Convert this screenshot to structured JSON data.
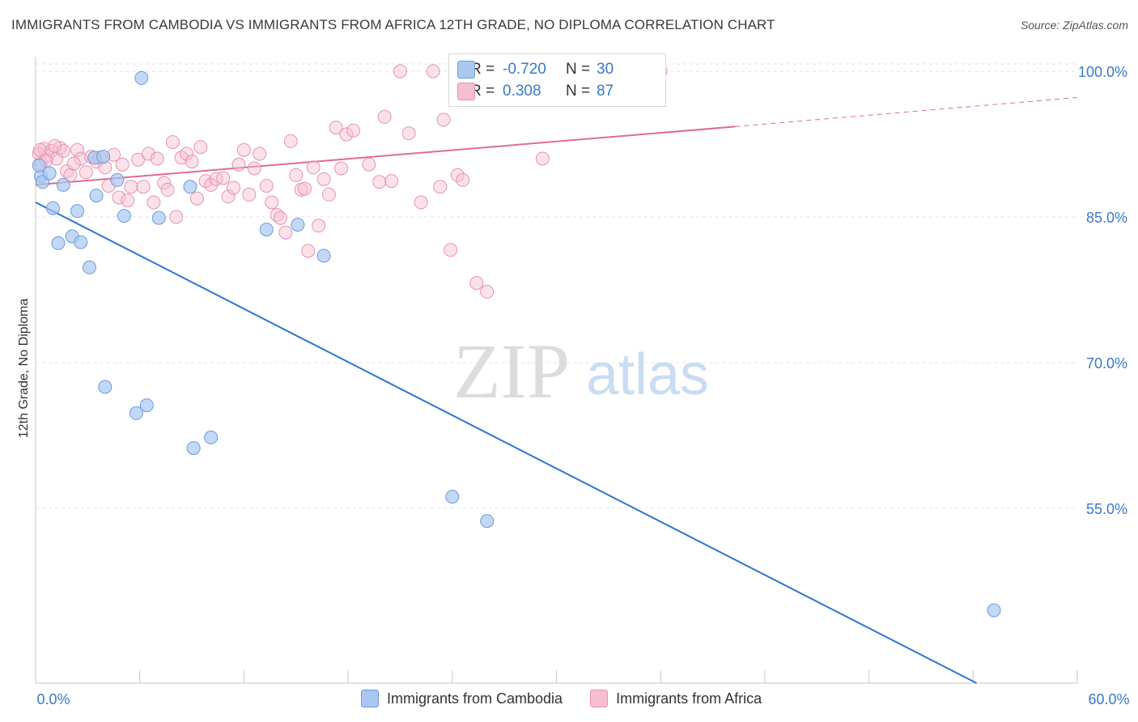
{
  "title": "IMMIGRANTS FROM CAMBODIA VS IMMIGRANTS FROM AFRICA 12TH GRADE, NO DIPLOMA CORRELATION CHART",
  "source": "Source: ZipAtlas.com",
  "watermark": {
    "zip": "ZIP",
    "atlas": "atlas"
  },
  "colors": {
    "blue_fill": "#aac8ef",
    "blue_stroke": "#6a9be0",
    "blue_line": "#2f74d0",
    "pink_fill": "#f6bfd1",
    "pink_stroke": "#e892ad",
    "pink_line": "#e06a94",
    "axis_text": "#3a78c9",
    "grid": "#e3e3e3"
  },
  "stats": {
    "blue": {
      "r_label": "R =",
      "r_value": "-0.720",
      "n_label": "N =",
      "n_value": "30"
    },
    "pink": {
      "r_label": "R =",
      "r_value": "0.308",
      "n_label": "N =",
      "n_value": "87"
    }
  },
  "chart_data": {
    "type": "scatter",
    "title": "IMMIGRANTS FROM CAMBODIA VS IMMIGRANTS FROM AFRICA 12TH GRADE, NO DIPLOMA CORRELATION CHART",
    "xlabel": "",
    "ylabel": "12th Grade, No Diploma",
    "xlim": [
      0,
      60
    ],
    "ylim": [
      37.0,
      101.5
    ],
    "x_tick_labels": [
      "0.0%",
      "60.0%"
    ],
    "y_ticks": [
      55.0,
      70.0,
      85.0,
      100.0
    ],
    "y_tick_labels": [
      "55.0%",
      "70.0%",
      "85.0%",
      "100.0%"
    ],
    "grid": true,
    "legend_position": "bottom",
    "series": [
      {
        "name": "Immigrants from Cambodia",
        "color": "#6a9be0",
        "trendline": {
          "x": [
            0,
            54.2
          ],
          "y": [
            86.5,
            37.0
          ]
        },
        "points": [
          [
            0.3,
            89.2
          ],
          [
            0.4,
            88.6
          ],
          [
            0.8,
            89.5
          ],
          [
            1.0,
            85.9
          ],
          [
            1.3,
            82.3
          ],
          [
            1.6,
            88.3
          ],
          [
            2.1,
            83.0
          ],
          [
            2.4,
            85.6
          ],
          [
            2.6,
            82.4
          ],
          [
            3.1,
            79.8
          ],
          [
            3.4,
            91.1
          ],
          [
            3.5,
            87.2
          ],
          [
            3.9,
            91.2
          ],
          [
            4.0,
            67.5
          ],
          [
            4.7,
            88.8
          ],
          [
            5.1,
            85.1
          ],
          [
            5.8,
            64.8
          ],
          [
            6.1,
            99.3
          ],
          [
            6.4,
            65.6
          ],
          [
            7.1,
            84.9
          ],
          [
            8.9,
            88.1
          ],
          [
            9.1,
            61.2
          ],
          [
            10.1,
            62.3
          ],
          [
            13.3,
            83.7
          ],
          [
            15.1,
            84.2
          ],
          [
            16.6,
            81.0
          ],
          [
            24.0,
            56.2
          ],
          [
            26.0,
            53.7
          ],
          [
            55.2,
            44.5
          ],
          [
            0.2,
            90.3
          ]
        ]
      },
      {
        "name": "Immigrants from Africa",
        "color": "#e892ad",
        "trendline": {
          "x": [
            0,
            40.3
          ],
          "y": [
            88.3,
            94.3
          ],
          "dashed_to": [
            60,
            97.3
          ]
        },
        "points": [
          [
            0.2,
            91.5
          ],
          [
            0.3,
            90.5
          ],
          [
            0.5,
            92.0
          ],
          [
            0.7,
            91.3
          ],
          [
            0.9,
            91.8
          ],
          [
            1.2,
            91.0
          ],
          [
            1.4,
            92.1
          ],
          [
            1.6,
            91.8
          ],
          [
            1.8,
            89.7
          ],
          [
            2.0,
            89.3
          ],
          [
            2.4,
            91.9
          ],
          [
            2.6,
            91.0
          ],
          [
            2.9,
            89.6
          ],
          [
            3.2,
            91.2
          ],
          [
            3.5,
            90.7
          ],
          [
            3.7,
            91.1
          ],
          [
            4.0,
            90.1
          ],
          [
            4.2,
            88.2
          ],
          [
            4.5,
            91.4
          ],
          [
            4.8,
            87.0
          ],
          [
            5.0,
            90.4
          ],
          [
            5.3,
            86.7
          ],
          [
            5.5,
            88.1
          ],
          [
            5.9,
            90.9
          ],
          [
            6.2,
            88.1
          ],
          [
            6.5,
            91.5
          ],
          [
            6.8,
            86.5
          ],
          [
            7.0,
            91.0
          ],
          [
            7.4,
            88.5
          ],
          [
            7.6,
            87.8
          ],
          [
            7.9,
            92.7
          ],
          [
            8.1,
            85.0
          ],
          [
            8.4,
            91.1
          ],
          [
            8.7,
            91.5
          ],
          [
            9.0,
            90.7
          ],
          [
            9.3,
            86.9
          ],
          [
            9.5,
            92.2
          ],
          [
            9.8,
            88.7
          ],
          [
            10.1,
            88.3
          ],
          [
            10.4,
            88.9
          ],
          [
            10.8,
            89.0
          ],
          [
            11.1,
            87.1
          ],
          [
            11.4,
            88.0
          ],
          [
            11.7,
            90.4
          ],
          [
            12.0,
            91.9
          ],
          [
            12.3,
            87.3
          ],
          [
            12.6,
            90.0
          ],
          [
            12.9,
            91.5
          ],
          [
            13.3,
            88.2
          ],
          [
            13.6,
            86.5
          ],
          [
            13.9,
            85.2
          ],
          [
            14.1,
            84.9
          ],
          [
            14.4,
            83.4
          ],
          [
            14.7,
            92.8
          ],
          [
            15.0,
            89.3
          ],
          [
            15.3,
            87.8
          ],
          [
            15.5,
            87.9
          ],
          [
            15.7,
            81.5
          ],
          [
            16.0,
            90.1
          ],
          [
            16.3,
            84.1
          ],
          [
            16.6,
            88.9
          ],
          [
            16.9,
            87.3
          ],
          [
            17.3,
            94.2
          ],
          [
            17.6,
            90.0
          ],
          [
            17.9,
            93.5
          ],
          [
            18.3,
            93.9
          ],
          [
            19.2,
            90.4
          ],
          [
            19.8,
            88.6
          ],
          [
            20.1,
            95.3
          ],
          [
            20.5,
            88.7
          ],
          [
            21.0,
            100.0
          ],
          [
            21.5,
            93.6
          ],
          [
            22.2,
            86.5
          ],
          [
            22.9,
            100.0
          ],
          [
            23.3,
            88.1
          ],
          [
            23.5,
            95.0
          ],
          [
            23.9,
            81.6
          ],
          [
            24.3,
            89.3
          ],
          [
            24.6,
            88.8
          ],
          [
            25.4,
            78.2
          ],
          [
            26.0,
            77.3
          ],
          [
            29.2,
            91.0
          ],
          [
            36.0,
            100.0
          ],
          [
            0.25,
            91.9
          ],
          [
            1.1,
            92.3
          ],
          [
            0.6,
            90.8
          ],
          [
            2.2,
            90.5
          ]
        ]
      }
    ]
  }
}
